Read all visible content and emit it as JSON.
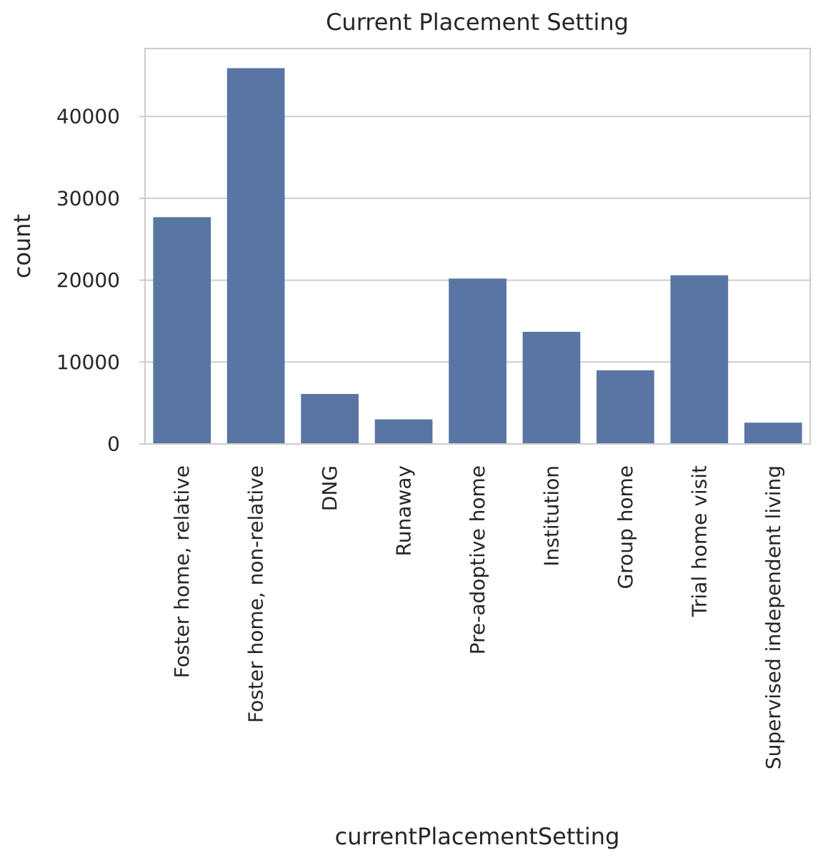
{
  "page": {
    "background": "#ffffff"
  },
  "chart_data": {
    "type": "bar",
    "title": "Current Placement Setting",
    "xlabel": "currentPlacementSetting",
    "ylabel": "count",
    "categories": [
      "Foster home, relative",
      "Foster home, non-relative",
      "DNG",
      "Runaway",
      "Pre-adoptive home",
      "Institution",
      "Group home",
      "Trial home visit",
      "Supervised independent living"
    ],
    "values": [
      27700,
      45900,
      6100,
      3000,
      20200,
      13700,
      9000,
      20600,
      2600
    ],
    "yticks": [
      0,
      10000,
      20000,
      30000,
      40000
    ],
    "ytick_labels": [
      "0",
      "10000",
      "20000",
      "30000",
      "40000"
    ],
    "ylim": [
      0,
      48300
    ],
    "xtick_rotation": 90,
    "grid": "horizontal",
    "legend": "none",
    "colors": {
      "bar": "#5975a4",
      "grid": "#cccccc",
      "spine": "#cccccc",
      "text": "#262626",
      "background": "#ffffff"
    }
  }
}
